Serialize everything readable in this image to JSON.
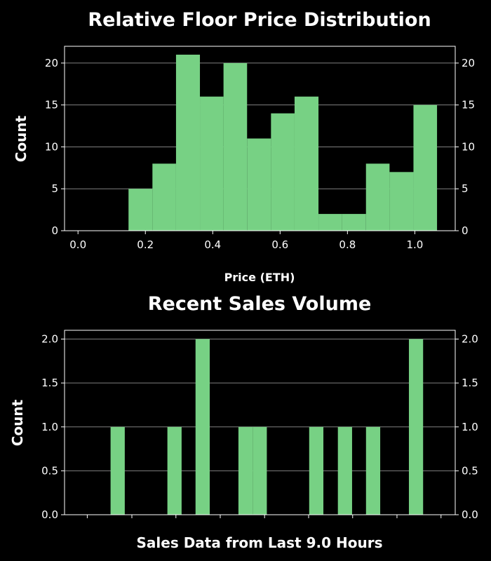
{
  "colors": {
    "background": "#000000",
    "bar": "#77d184",
    "grid": "#808080",
    "axis": "#ffffff",
    "text": "#ffffff"
  },
  "chart_data": [
    {
      "id": "floor-price",
      "type": "histogram",
      "title": "Relative Floor Price Distribution",
      "xlabel": "Price (ETH)",
      "ylabel": "Count",
      "xlim": [
        -0.04,
        1.12
      ],
      "ylim": [
        0,
        22
      ],
      "x_ticks": [
        0.0,
        0.2,
        0.4,
        0.6,
        0.8,
        1.0
      ],
      "x_tick_labels": [
        "0.0",
        "0.2",
        "0.4",
        "0.6",
        "0.8",
        "1.0"
      ],
      "y_ticks": [
        0,
        5,
        10,
        15,
        20
      ],
      "y_tick_labels": [
        "0",
        "5",
        "10",
        "15",
        "20"
      ],
      "y_ticks_both_sides": true,
      "grid": "y",
      "bins": [
        {
          "x0": 0.15,
          "x1": 0.221,
          "count": 5
        },
        {
          "x0": 0.221,
          "x1": 0.291,
          "count": 8
        },
        {
          "x0": 0.291,
          "x1": 0.362,
          "count": 21
        },
        {
          "x0": 0.362,
          "x1": 0.432,
          "count": 16
        },
        {
          "x0": 0.432,
          "x1": 0.502,
          "count": 20
        },
        {
          "x0": 0.502,
          "x1": 0.573,
          "count": 11
        },
        {
          "x0": 0.573,
          "x1": 0.643,
          "count": 14
        },
        {
          "x0": 0.643,
          "x1": 0.714,
          "count": 16
        },
        {
          "x0": 0.714,
          "x1": 0.784,
          "count": 2
        },
        {
          "x0": 0.784,
          "x1": 0.855,
          "count": 2
        },
        {
          "x0": 0.855,
          "x1": 0.925,
          "count": 8
        },
        {
          "x0": 0.925,
          "x1": 0.996,
          "count": 7
        },
        {
          "x0": 0.996,
          "x1": 1.066,
          "count": 15
        }
      ]
    },
    {
      "id": "sales-volume",
      "type": "histogram",
      "title": "Recent Sales Volume",
      "xlabel": "Sales Data from Last 9.0 Hours",
      "ylabel": "Count",
      "xlim": [
        -0.8,
        12.95
      ],
      "ylim": [
        0,
        2.1
      ],
      "x_ticks": [
        0,
        1.57,
        3.12,
        4.68,
        6.24,
        7.79,
        9.34,
        10.9,
        12.45
      ],
      "x_tick_labels_visible": false,
      "y_ticks": [
        0.0,
        0.5,
        1.0,
        1.5,
        2.0
      ],
      "y_tick_labels": [
        "0.0",
        "0.5",
        "1.0",
        "1.5",
        "2.0"
      ],
      "y_ticks_both_sides": true,
      "grid": "y",
      "bins": [
        {
          "x0": 0.82,
          "x1": 1.32,
          "count": 1
        },
        {
          "x0": 2.82,
          "x1": 3.32,
          "count": 1
        },
        {
          "x0": 3.81,
          "x1": 4.31,
          "count": 2
        },
        {
          "x0": 5.32,
          "x1": 5.82,
          "count": 1
        },
        {
          "x0": 5.82,
          "x1": 6.32,
          "count": 1
        },
        {
          "x0": 7.81,
          "x1": 8.31,
          "count": 1
        },
        {
          "x0": 8.82,
          "x1": 9.32,
          "count": 1
        },
        {
          "x0": 9.81,
          "x1": 10.31,
          "count": 1
        },
        {
          "x0": 11.32,
          "x1": 11.82,
          "count": 2
        }
      ]
    }
  ]
}
